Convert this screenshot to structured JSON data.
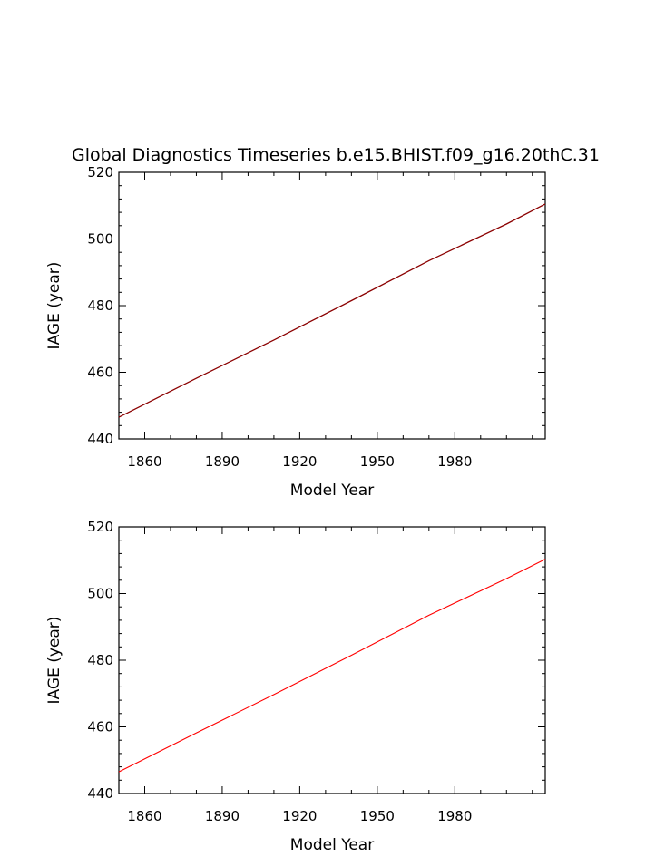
{
  "title": "Global Diagnostics Timeseries b.e15.BHIST.f09_g16.20thC.31",
  "colors": {
    "series_panel1": "#8b0000",
    "series_panel2": "#ff0000",
    "axes": "#000000"
  },
  "chart_data": [
    {
      "type": "line",
      "xlabel": "Model Year",
      "ylabel": "IAGE (year)",
      "xlim": [
        1850,
        2015
      ],
      "ylim": [
        440,
        520
      ],
      "xticks": [
        1860,
        1890,
        1920,
        1950,
        1980
      ],
      "yticks": [
        440,
        460,
        480,
        500,
        520
      ],
      "grid": false,
      "series": [
        {
          "x": [
            1850,
            1880,
            1910,
            1940,
            1970,
            2000,
            2015
          ],
          "y": [
            446.5,
            458.2,
            469.7,
            481.5,
            493.5,
            504.5,
            510.5
          ]
        }
      ]
    },
    {
      "type": "line",
      "xlabel": "Model Year",
      "ylabel": "IAGE (year)",
      "xlim": [
        1850,
        2015
      ],
      "ylim": [
        440,
        520
      ],
      "xticks": [
        1860,
        1890,
        1920,
        1950,
        1980
      ],
      "yticks": [
        440,
        460,
        480,
        500,
        520
      ],
      "grid": false,
      "series": [
        {
          "x": [
            1850,
            1880,
            1910,
            1940,
            1970,
            2000,
            2015
          ],
          "y": [
            446.5,
            458.2,
            469.7,
            481.5,
            493.5,
            504.5,
            510.3
          ]
        }
      ]
    }
  ]
}
